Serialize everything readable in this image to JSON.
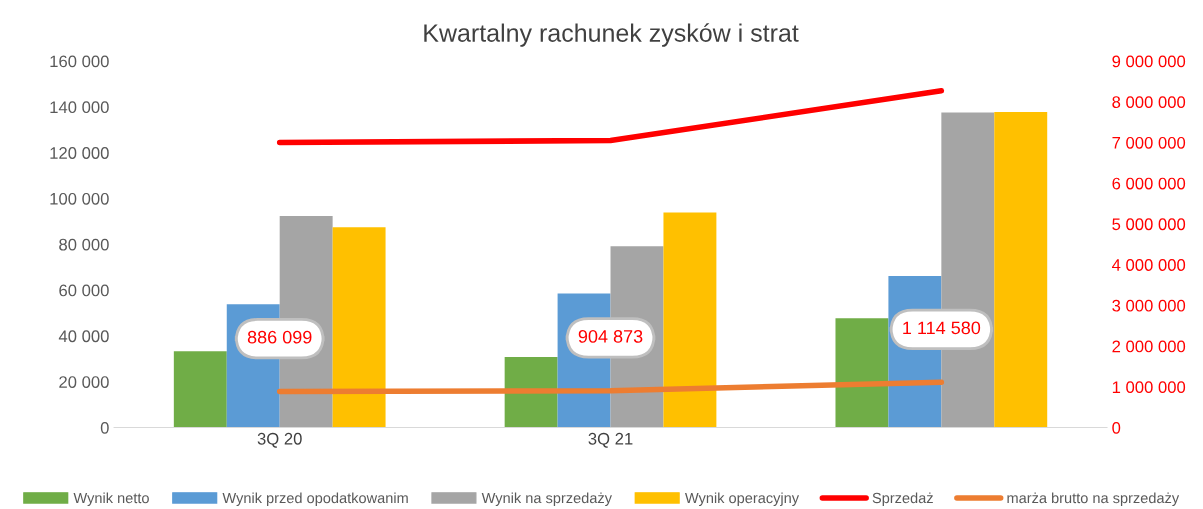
{
  "chart_data": {
    "type": "bar",
    "title": "Kwartalny rachunek zysków i strat",
    "categories": [
      "3Q 20",
      "3Q 21",
      null
    ],
    "series": [
      {
        "name": "Wynik netto",
        "color": "#70ad47",
        "values": [
          33300,
          30800,
          47700
        ]
      },
      {
        "name": "Wynik przed opodatkowanim",
        "color": "#5b9bd5",
        "values": [
          53800,
          58500,
          66200
        ]
      },
      {
        "name": "Wynik na sprzedaży",
        "color": "#a5a5a5",
        "values": [
          92400,
          79200,
          137500
        ]
      },
      {
        "name": "Wynik operacyjny",
        "color": "#ffc000",
        "values": [
          87500,
          93900,
          137800
        ]
      },
      {
        "name": "Sprzedaż",
        "type": "line",
        "axis": "y2",
        "color": "#ff0000",
        "values": [
          7000000,
          7050000,
          8270000
        ]
      },
      {
        "name": "marża brutto na sprzedaży",
        "type": "line",
        "axis": "y2",
        "color": "#ed7d31",
        "values": [
          886099,
          904873,
          1114580
        ],
        "value_labels": [
          "886 099",
          "904 873",
          "1 114 580"
        ]
      }
    ],
    "ylim": [
      0,
      160000
    ],
    "yticks": [
      {
        "value": 0,
        "label": "0"
      },
      {
        "value": 20000,
        "label": "20 000"
      },
      {
        "value": 40000,
        "label": "40 000"
      },
      {
        "value": 60000,
        "label": "60 000"
      },
      {
        "value": 80000,
        "label": "80 000"
      },
      {
        "value": 100000,
        "label": "100 000"
      },
      {
        "value": 120000,
        "label": "120 000"
      },
      {
        "value": 140000,
        "label": "140 000"
      },
      {
        "value": 160000,
        "label": "160 000"
      }
    ],
    "y2lim": [
      0,
      9000000
    ],
    "y2ticks": [
      {
        "value": 0,
        "label": "0"
      },
      {
        "value": 1000000,
        "label": "1 000 000"
      },
      {
        "value": 2000000,
        "label": "2 000 000"
      },
      {
        "value": 3000000,
        "label": "3 000 000"
      },
      {
        "value": 4000000,
        "label": "4 000 000"
      },
      {
        "value": 5000000,
        "label": "5 000 000"
      },
      {
        "value": 6000000,
        "label": "6 000 000"
      },
      {
        "value": 7000000,
        "label": "7 000 000"
      },
      {
        "value": 8000000,
        "label": "8 000 000"
      },
      {
        "value": 9000000,
        "label": "9 000 000"
      }
    ],
    "grid": false,
    "legend": "bottom"
  }
}
